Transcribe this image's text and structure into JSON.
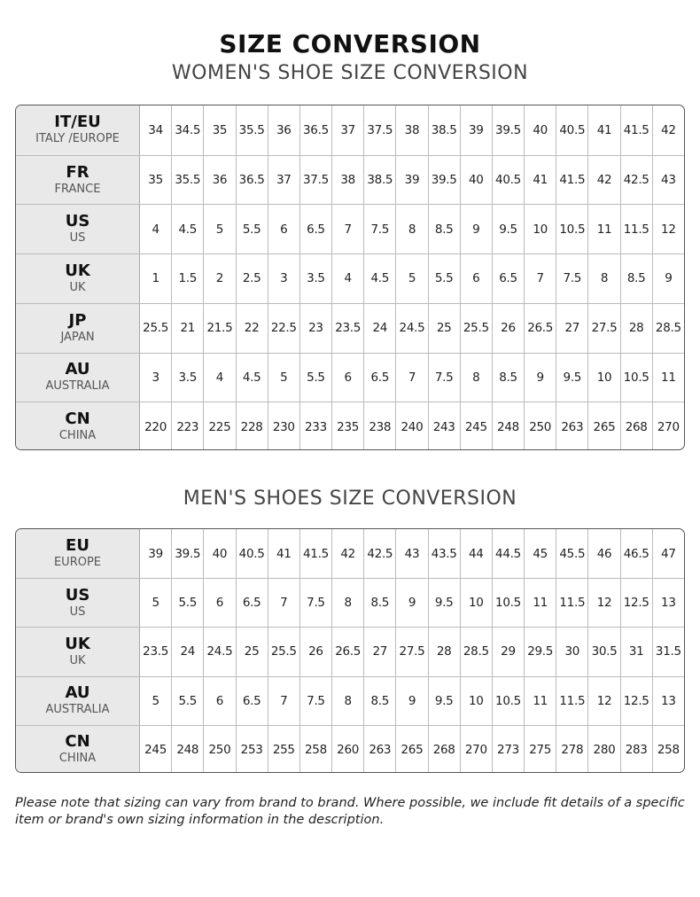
{
  "title": "SIZE CONVERSION",
  "women": {
    "heading": "WOMEN'S SHOE SIZE CONVERSION",
    "rows": [
      {
        "code": "IT/EU",
        "name": "ITALY /EUROPE",
        "values": [
          "34",
          "34.5",
          "35",
          "35.5",
          "36",
          "36.5",
          "37",
          "37.5",
          "38",
          "38.5",
          "39",
          "39.5",
          "40",
          "40.5",
          "41",
          "41.5",
          "42"
        ]
      },
      {
        "code": "FR",
        "name": "FRANCE",
        "values": [
          "35",
          "35.5",
          "36",
          "36.5",
          "37",
          "37.5",
          "38",
          "38.5",
          "39",
          "39.5",
          "40",
          "40.5",
          "41",
          "41.5",
          "42",
          "42.5",
          "43"
        ]
      },
      {
        "code": "US",
        "name": "US",
        "values": [
          "4",
          "4.5",
          "5",
          "5.5",
          "6",
          "6.5",
          "7",
          "7.5",
          "8",
          "8.5",
          "9",
          "9.5",
          "10",
          "10.5",
          "11",
          "11.5",
          "12"
        ]
      },
      {
        "code": "UK",
        "name": "UK",
        "values": [
          "1",
          "1.5",
          "2",
          "2.5",
          "3",
          "3.5",
          "4",
          "4.5",
          "5",
          "5.5",
          "6",
          "6.5",
          "7",
          "7.5",
          "8",
          "8.5",
          "9"
        ]
      },
      {
        "code": "JP",
        "name": "JAPAN",
        "values": [
          "25.5",
          "21",
          "21.5",
          "22",
          "22.5",
          "23",
          "23.5",
          "24",
          "24.5",
          "25",
          "25.5",
          "26",
          "26.5",
          "27",
          "27.5",
          "28",
          "28.5"
        ]
      },
      {
        "code": "AU",
        "name": "AUSTRALIA",
        "values": [
          "3",
          "3.5",
          "4",
          "4.5",
          "5",
          "5.5",
          "6",
          "6.5",
          "7",
          "7.5",
          "8",
          "8.5",
          "9",
          "9.5",
          "10",
          "10.5",
          "11"
        ]
      },
      {
        "code": "CN",
        "name": "CHINA",
        "values": [
          "220",
          "223",
          "225",
          "228",
          "230",
          "233",
          "235",
          "238",
          "240",
          "243",
          "245",
          "248",
          "250",
          "263",
          "265",
          "268",
          "270"
        ]
      }
    ]
  },
  "men": {
    "heading": "MEN'S SHOES SIZE CONVERSION",
    "rows": [
      {
        "code": "EU",
        "name": "EUROPE",
        "values": [
          "39",
          "39.5",
          "40",
          "40.5",
          "41",
          "41.5",
          "42",
          "42.5",
          "43",
          "43.5",
          "44",
          "44.5",
          "45",
          "45.5",
          "46",
          "46.5",
          "47"
        ]
      },
      {
        "code": "US",
        "name": "US",
        "values": [
          "5",
          "5.5",
          "6",
          "6.5",
          "7",
          "7.5",
          "8",
          "8.5",
          "9",
          "9.5",
          "10",
          "10.5",
          "11",
          "11.5",
          "12",
          "12.5",
          "13"
        ]
      },
      {
        "code": "UK",
        "name": "UK",
        "values": [
          "23.5",
          "24",
          "24.5",
          "25",
          "25.5",
          "26",
          "26.5",
          "27",
          "27.5",
          "28",
          "28.5",
          "29",
          "29.5",
          "30",
          "30.5",
          "31",
          "31.5"
        ]
      },
      {
        "code": "AU",
        "name": "AUSTRALIA",
        "values": [
          "5",
          "5.5",
          "6",
          "6.5",
          "7",
          "7.5",
          "8",
          "8.5",
          "9",
          "9.5",
          "10",
          "10.5",
          "11",
          "11.5",
          "12",
          "12.5",
          "13"
        ]
      },
      {
        "code": "CN",
        "name": "CHINA",
        "values": [
          "245",
          "248",
          "250",
          "253",
          "255",
          "258",
          "260",
          "263",
          "265",
          "268",
          "270",
          "273",
          "275",
          "278",
          "280",
          "283",
          "258"
        ]
      }
    ]
  },
  "note": "Please note that sizing can vary from brand to brand. Where possible, we include fit details of a specific item or brand's own sizing information in the description."
}
